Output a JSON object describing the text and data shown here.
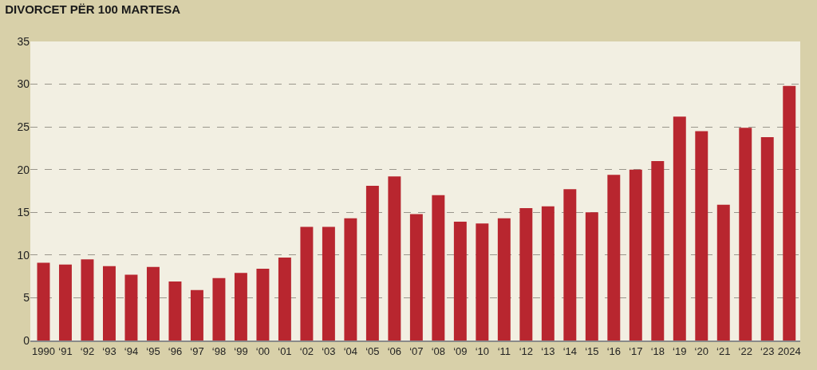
{
  "chart_data": {
    "type": "bar",
    "title": "DIVORCET PËR 100 MARTESA",
    "categories": [
      "1990",
      "‘91",
      "‘92",
      "‘93",
      "‘94",
      "‘95",
      "‘96",
      "‘97",
      "‘98",
      "‘99",
      "‘00",
      "‘01",
      "‘02",
      "‘03",
      "‘04",
      "‘05",
      "‘06",
      "‘07",
      "‘08",
      "‘09",
      "‘10",
      "‘11",
      "‘12",
      "‘13",
      "‘14",
      "‘15",
      "‘16",
      "‘17",
      "‘18",
      "‘19",
      "‘20",
      "‘21",
      "‘22",
      "‘23",
      "2024"
    ],
    "values": [
      9.1,
      8.9,
      9.5,
      8.7,
      7.7,
      8.6,
      6.9,
      5.9,
      7.3,
      7.9,
      8.4,
      9.7,
      13.3,
      13.3,
      14.3,
      18.1,
      19.2,
      14.8,
      17.0,
      13.9,
      13.7,
      14.3,
      15.5,
      15.7,
      17.7,
      15.0,
      19.4,
      20.0,
      21.0,
      26.2,
      24.5,
      15.9,
      24.9,
      23.8,
      29.8
    ],
    "color": "#b8262f",
    "ylim": [
      0,
      35
    ],
    "yticks": [
      0,
      5,
      10,
      15,
      20,
      25,
      30,
      35
    ],
    "grid": "y"
  }
}
